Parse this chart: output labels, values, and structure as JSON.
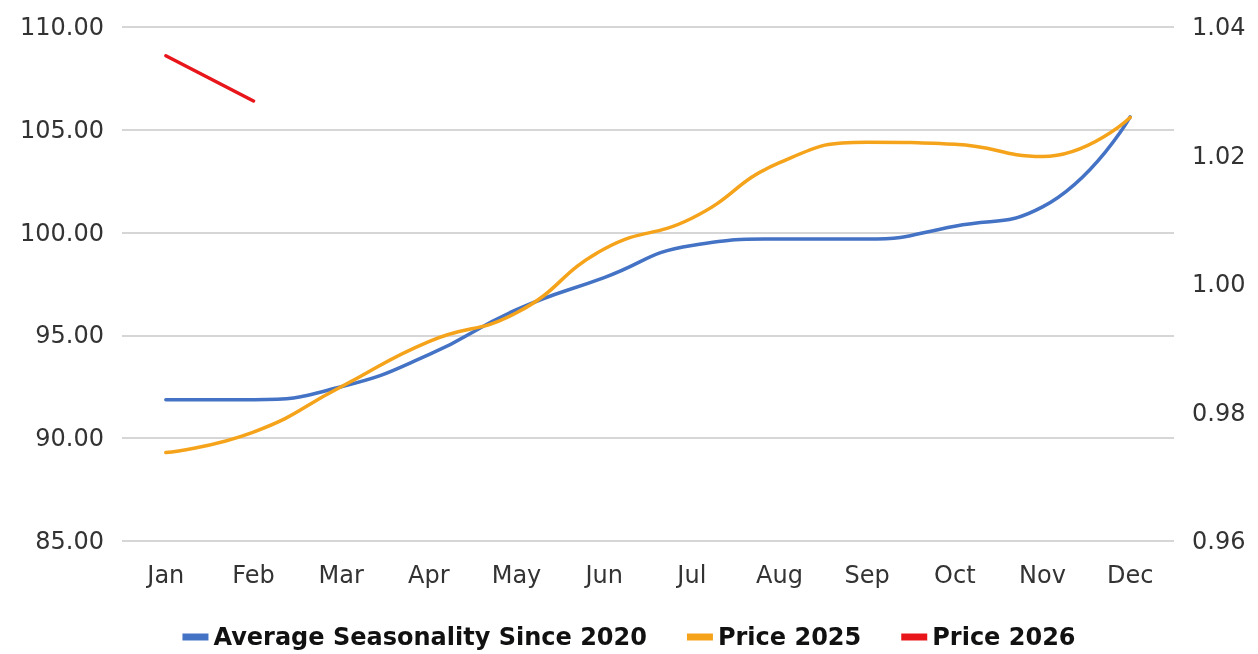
{
  "chart_data": {
    "type": "line",
    "categories": [
      "Jan",
      "Feb",
      "Mar",
      "Apr",
      "May",
      "Jun",
      "Jul",
      "Aug",
      "Sep",
      "Oct",
      "Nov",
      "Dec"
    ],
    "series": [
      {
        "name": "Average Seasonality Since 2020",
        "color": "#4472c4",
        "axis": "y2",
        "values": [
          0.982,
          0.982,
          0.984,
          0.989,
          0.996,
          1.001,
          1.006,
          1.007,
          1.007,
          1.009,
          1.012,
          1.026
        ]
      },
      {
        "name": "Price 2025",
        "color": "#f5a31a",
        "values": [
          89.3,
          90.3,
          92.5,
          94.7,
          96.1,
          99.2,
          100.7,
          103.4,
          104.4,
          104.3,
          103.7,
          105.6
        ]
      },
      {
        "name": "Price 2026",
        "color": "#e8161b",
        "values": [
          108.6,
          106.4,
          null,
          null,
          null,
          null,
          null,
          null,
          null,
          null,
          null,
          null
        ]
      }
    ],
    "ylim": [
      85,
      110
    ],
    "yticks": [
      {
        "value": 85,
        "label": "85.00"
      },
      {
        "value": 90,
        "label": "90.00"
      },
      {
        "value": 95,
        "label": "95.00"
      },
      {
        "value": 100,
        "label": "100.00"
      },
      {
        "value": 105,
        "label": "105.00"
      },
      {
        "value": 110,
        "label": "110.00"
      }
    ],
    "y2lim": [
      0.96,
      1.04
    ],
    "y2ticks": [
      0.96,
      0.98,
      {
        "value": 1,
        "label": "1.00"
      },
      1.02,
      1.04
    ],
    "grid": "y",
    "legend": "bottom",
    "marker": "none",
    "line_style": "solid"
  }
}
